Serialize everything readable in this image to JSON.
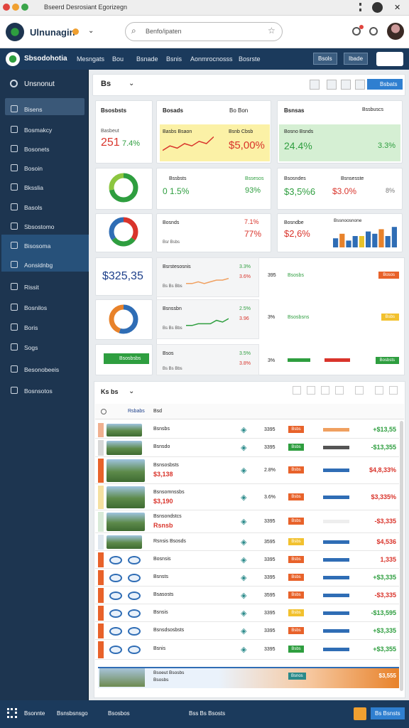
{
  "browser": {
    "title": "Bseerd Desrosiant Egorizegn"
  },
  "header": {
    "brand": "Ulnunagin",
    "search": "Benfo/ipaten"
  },
  "nav": {
    "brand": "Sbsodohotia",
    "items": [
      "Mesngats",
      "Bou",
      "Bsnade",
      "Bsnis",
      "Aonmrocnosss",
      "Bosrste"
    ],
    "buttons": [
      "Bsols",
      "Ibade"
    ]
  },
  "sidebar": {
    "title": "Unsnonut",
    "items": [
      "Bisens",
      "Bosmakcy",
      "Bosonets",
      "Bosoin",
      "Bksslia",
      "Basols",
      "Sbsostomo",
      "Bisosoma",
      "Aonsidnbg",
      "Rissit",
      "Bosnilos",
      "Boris",
      "Sogs",
      "Besonobeeis",
      "Bosnsotos"
    ]
  },
  "toolbar": {
    "label": "Bs",
    "button": "Bsbats"
  },
  "kpi": {
    "total": {
      "title": "Bsosbsts",
      "label": "Basbeut",
      "value": "251",
      "delta": "7.4%"
    },
    "sales": {
      "title": "Bosads",
      "filter": "Bo Bon",
      "label": "Basbs Bsaon",
      "sublabel": "Bsnb Cbsb",
      "value": "$5,00%",
      "trend": [
        2,
        4,
        3,
        5,
        4,
        6,
        5,
        8
      ],
      "trend_ylim": [
        0,
        10
      ]
    },
    "growth": {
      "title": "Bsnsas",
      "filter": "Bssbuscs",
      "label": "Bosno Bsnds",
      "value": "24.4%",
      "delta": "3.3%"
    },
    "donut_a": {
      "values": [
        72,
        28
      ],
      "colors": [
        "#2e9e3f",
        "#8cc63f"
      ]
    },
    "rate": {
      "title": "Bssbsts",
      "label": "Bssesos",
      "value": "0 1.5%",
      "delta": "93%"
    },
    "revenue": {
      "title": "Bsosndes",
      "label": "Bsnsesste",
      "value": "$3,5%6",
      "value2": "$3.0%",
      "delta": "8%"
    },
    "donut_b": {
      "values": [
        35,
        30,
        35
      ],
      "colors": [
        "#d9342b",
        "#2e9e3f",
        "#2f6db5"
      ]
    },
    "orders": {
      "title": "Bosnds",
      "value": "7.1%",
      "value2": "77%",
      "foot": "Bsr Bsbs"
    },
    "profit": {
      "title": "Bosndbe",
      "value": "$2,6%",
      "chart_title": "Bssnoosnone",
      "bars": [
        4,
        6,
        3,
        5,
        5,
        7,
        6,
        8,
        5,
        9
      ],
      "bar_colors": [
        "#2f6db5",
        "#e8822a",
        "#2f6db5",
        "#2f6db5",
        "#e8c22a",
        "#2f6db5",
        "#2f6db5",
        "#e8822a",
        "#2f6db5",
        "#2f6db5"
      ],
      "ylim": [
        0,
        10
      ]
    },
    "balance": {
      "value": "$325,35"
    },
    "donut_c": {
      "values": [
        55,
        45
      ],
      "colors": [
        "#2f6db5",
        "#e8822a"
      ]
    }
  },
  "lines": [
    {
      "title": "Bsrstesosnis",
      "v1": "3.3%",
      "v2": "3.6%",
      "foot": "Bs Bs Bbs",
      "trend": [
        3,
        3,
        4,
        3,
        4,
        5,
        5,
        6
      ],
      "ylim": [
        0,
        10
      ],
      "pct": "395",
      "label": "Bsosbs",
      "button": "Bosos",
      "button_color": "#e8622a"
    },
    {
      "title": "Bsnssbn",
      "v1": "2.5%",
      "v2": "3.96",
      "foot": "Bs Bs Bbs",
      "trend": [
        3,
        3,
        4,
        4,
        4,
        6,
        5,
        7
      ],
      "ylim": [
        0,
        10
      ],
      "pct": "3%",
      "label": "Bsosbsns",
      "button": "Bsbs",
      "button_color": "#f2c12e"
    },
    {
      "title": "Bsos",
      "v1": "3.5%",
      "v2": "3.8%",
      "foot": "Bs Bs Bbs",
      "trend": null,
      "ylim": [
        0,
        10
      ],
      "pct": "3%",
      "label": null,
      "button": "Bosbsts",
      "button_color": "#2e9e3f"
    }
  ],
  "action": {
    "button": "Bsosbsbs"
  },
  "table": {
    "title": "Ks bs",
    "columns": [
      "Rsbabs",
      "Bsd"
    ],
    "rows": [
      {
        "name": "Bsnsbs",
        "sub": null,
        "pct": "3395",
        "badge": "Bsbs",
        "badge_color": "#e8622a",
        "bar_color": "#f0a060",
        "amount": "+$13,55",
        "amount_color": "#2e9e3f"
      },
      {
        "name": "Bsnsdo",
        "sub": null,
        "pct": "3395",
        "badge": "Bsbs",
        "badge_color": "#2e9e3f",
        "bar_color": "#555555",
        "amount": "-$13,355",
        "amount_color": "#2e9e3f"
      },
      {
        "name": "Bsnsosbsts",
        "sub": "$3,138",
        "pct": "2.8%",
        "badge": "Bsbs",
        "badge_color": "#e8622a",
        "bar_color": "#2f6db5",
        "amount": "$4,8,33%",
        "amount_color": "#d9342b"
      },
      {
        "name": "Bsnsomnssbs",
        "sub": "$3,190",
        "pct": "3.6%",
        "badge": "Bsbs",
        "badge_color": "#e8622a",
        "bar_color": "#2f6db5",
        "amount": "$3,335%",
        "amount_color": "#d9342b"
      },
      {
        "name": "Bsnsondstcs",
        "sub": "Rsnsb",
        "pct": "3395",
        "badge": "Bsbs",
        "badge_color": "#e8622a",
        "bar_color": "#eeeeee",
        "amount": "-$3,335",
        "amount_color": "#d9342b"
      },
      {
        "name": "Rsnsis Bsosds",
        "sub": null,
        "pct": "3595",
        "badge": "Bsbs",
        "badge_color": "#f2c12e",
        "bar_color": "#2f6db5",
        "amount": "$4,536",
        "amount_color": "#d9342b"
      },
      {
        "name": "Bosnsis",
        "sub": null,
        "pct": "3395",
        "badge": "Bsbs",
        "badge_color": "#e8622a",
        "bar_color": "#2f6db5",
        "amount": "1,335",
        "amount_color": "#d9342b"
      },
      {
        "name": "Bsnsts",
        "sub": null,
        "pct": "3395",
        "badge": "Bsbs",
        "badge_color": "#e8622a",
        "bar_color": "#2f6db5",
        "amount": "+$3,335",
        "amount_color": "#2e9e3f"
      },
      {
        "name": "Bsasosts",
        "sub": null,
        "pct": "3595",
        "badge": "Bsbs",
        "badge_color": "#e8622a",
        "bar_color": "#2f6db5",
        "amount": "-$3,335",
        "amount_color": "#d9342b"
      },
      {
        "name": "Bsnsis",
        "sub": null,
        "pct": "3395",
        "badge": "Bsbs",
        "badge_color": "#f2c12e",
        "bar_color": "#2f6db5",
        "amount": "-$13,595",
        "amount_color": "#2e9e3f"
      },
      {
        "name": "Bsnsdsosbsts",
        "sub": null,
        "pct": "3395",
        "badge": "Bsbs",
        "badge_color": "#e8622a",
        "bar_color": "#2f6db5",
        "amount": "+$3,335",
        "amount_color": "#2e9e3f"
      },
      {
        "name": "Bsnis",
        "sub": null,
        "pct": "3395",
        "badge": "Bsbs",
        "badge_color": "#2e9e3f",
        "bar_color": "#2f6db5",
        "amount": "+$3,355",
        "amount_color": "#2e9e3f"
      }
    ],
    "summary": {
      "name": "Bsoeut Bsosbs",
      "sub": "Bsosbs",
      "badge": "Bsnos",
      "amount": "$3,555"
    }
  },
  "footer": {
    "items": [
      "Bsonnte",
      "Bsnsbsnsgo",
      "Bsosbos",
      "Bss Bs Bsosts"
    ],
    "button": "Bs Bsnsts"
  }
}
